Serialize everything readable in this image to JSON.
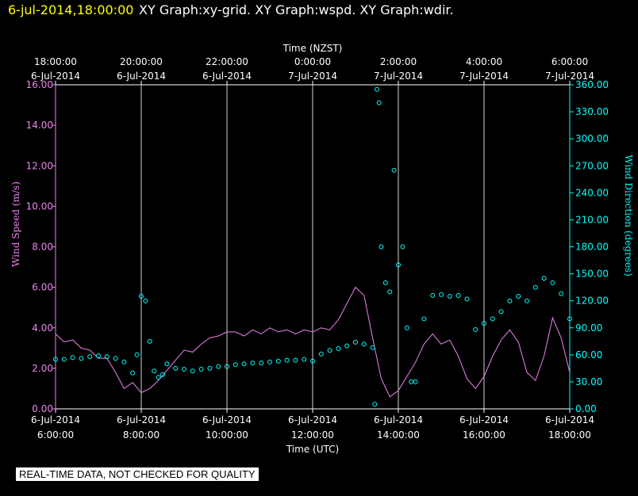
{
  "header": {
    "timestamp": "6-jul-2014,18:00:00",
    "graphs": "XY Graph:xy-grid.  XY Graph:wspd.  XY Graph:wdir."
  },
  "footer_note": "REAL-TIME DATA, NOT CHECKED FOR QUALITY",
  "colors": {
    "background": "#000000",
    "axes": "#ffffff",
    "wind_speed": "#ee82ee",
    "wind_direction": "#00ffff",
    "timestamp": "#ffff00"
  },
  "chart_data": {
    "type": "scatter",
    "grid": "vertical lines at each time tick",
    "x_top": {
      "title": "Time (NZST)",
      "ticks": [
        {
          "time": "18:00:00",
          "date": "6-Jul-2014"
        },
        {
          "time": "20:00:00",
          "date": "6-Jul-2014"
        },
        {
          "time": "22:00:00",
          "date": "6-Jul-2014"
        },
        {
          "time": "0:00:00",
          "date": "7-Jul-2014"
        },
        {
          "time": "2:00:00",
          "date": "7-Jul-2014"
        },
        {
          "time": "4:00:00",
          "date": "7-Jul-2014"
        },
        {
          "time": "6:00:00",
          "date": "7-Jul-2014"
        }
      ]
    },
    "x_bottom": {
      "title": "Time (UTC)",
      "range": [
        "6-Jul-2014 6:00:00",
        "6-Jul-2014 18:00:00"
      ],
      "ticks": [
        {
          "date": "6-Jul-2014",
          "time": "6:00:00"
        },
        {
          "date": "6-Jul-2014",
          "time": "8:00:00"
        },
        {
          "date": "6-Jul-2014",
          "time": "10:00:00"
        },
        {
          "date": "6-Jul-2014",
          "time": "12:00:00"
        },
        {
          "date": "6-Jul-2014",
          "time": "14:00:00"
        },
        {
          "date": "6-Jul-2014",
          "time": "16:00:00"
        },
        {
          "date": "6-Jul-2014",
          "time": "18:00:00"
        }
      ]
    },
    "y_left": {
      "title": "Wind Speed (m/s)",
      "range": [
        0,
        16
      ],
      "ticks": [
        "0.00",
        "2.00",
        "4.00",
        "6.00",
        "8.00",
        "10.00",
        "12.00",
        "14.00",
        "16.00"
      ]
    },
    "y_right": {
      "title": "Wind Direction (degrees)",
      "range": [
        0,
        360
      ],
      "ticks": [
        "0.00",
        "30.00",
        "60.00",
        "90.00",
        "120.00",
        "150.00",
        "180.00",
        "210.00",
        "240.00",
        "270.00",
        "300.00",
        "330.00",
        "360.00"
      ]
    },
    "series": [
      {
        "axis": "left",
        "style": "line",
        "x_units": "hours UTC",
        "points": [
          [
            6.0,
            3.7
          ],
          [
            6.2,
            3.3
          ],
          [
            6.4,
            3.4
          ],
          [
            6.6,
            3.0
          ],
          [
            6.8,
            2.9
          ],
          [
            7.0,
            2.5
          ],
          [
            7.2,
            2.5
          ],
          [
            7.4,
            1.8
          ],
          [
            7.6,
            1.0
          ],
          [
            7.8,
            1.3
          ],
          [
            8.0,
            0.8
          ],
          [
            8.2,
            1.0
          ],
          [
            8.4,
            1.4
          ],
          [
            8.6,
            1.9
          ],
          [
            8.8,
            2.4
          ],
          [
            9.0,
            2.9
          ],
          [
            9.2,
            2.8
          ],
          [
            9.4,
            3.2
          ],
          [
            9.6,
            3.5
          ],
          [
            9.8,
            3.6
          ],
          [
            10.0,
            3.8
          ],
          [
            10.2,
            3.8
          ],
          [
            10.4,
            3.6
          ],
          [
            10.6,
            3.9
          ],
          [
            10.8,
            3.7
          ],
          [
            11.0,
            4.0
          ],
          [
            11.2,
            3.8
          ],
          [
            11.4,
            3.9
          ],
          [
            11.6,
            3.7
          ],
          [
            11.8,
            3.9
          ],
          [
            12.0,
            3.8
          ],
          [
            12.2,
            4.0
          ],
          [
            12.4,
            3.9
          ],
          [
            12.6,
            4.4
          ],
          [
            12.8,
            5.2
          ],
          [
            13.0,
            6.0
          ],
          [
            13.2,
            5.6
          ],
          [
            13.4,
            3.5
          ],
          [
            13.6,
            1.5
          ],
          [
            13.8,
            0.6
          ],
          [
            14.0,
            0.9
          ],
          [
            14.2,
            1.6
          ],
          [
            14.4,
            2.3
          ],
          [
            14.6,
            3.2
          ],
          [
            14.8,
            3.7
          ],
          [
            15.0,
            3.2
          ],
          [
            15.2,
            3.4
          ],
          [
            15.4,
            2.6
          ],
          [
            15.6,
            1.5
          ],
          [
            15.8,
            1.0
          ],
          [
            16.0,
            1.6
          ],
          [
            16.2,
            2.6
          ],
          [
            16.4,
            3.4
          ],
          [
            16.6,
            3.9
          ],
          [
            16.8,
            3.3
          ],
          [
            17.0,
            1.8
          ],
          [
            17.2,
            1.4
          ],
          [
            17.4,
            2.6
          ],
          [
            17.6,
            4.5
          ],
          [
            17.8,
            3.5
          ],
          [
            18.0,
            1.8
          ]
        ]
      },
      {
        "axis": "right",
        "style": "scatter",
        "x_units": "hours UTC",
        "points": [
          [
            6.0,
            55
          ],
          [
            6.2,
            55
          ],
          [
            6.4,
            57
          ],
          [
            6.6,
            56
          ],
          [
            6.8,
            58
          ],
          [
            7.0,
            59
          ],
          [
            7.2,
            58
          ],
          [
            7.4,
            56
          ],
          [
            7.6,
            52
          ],
          [
            7.8,
            40
          ],
          [
            7.9,
            60
          ],
          [
            8.0,
            125
          ],
          [
            8.1,
            120
          ],
          [
            8.2,
            75
          ],
          [
            8.3,
            42
          ],
          [
            8.4,
            35
          ],
          [
            8.5,
            38
          ],
          [
            8.6,
            50
          ],
          [
            8.8,
            45
          ],
          [
            9.0,
            44
          ],
          [
            9.2,
            42
          ],
          [
            9.4,
            44
          ],
          [
            9.6,
            45
          ],
          [
            9.8,
            47
          ],
          [
            10.0,
            47
          ],
          [
            10.2,
            49
          ],
          [
            10.4,
            50
          ],
          [
            10.6,
            51
          ],
          [
            10.8,
            51
          ],
          [
            11.0,
            52
          ],
          [
            11.2,
            53
          ],
          [
            11.4,
            54
          ],
          [
            11.6,
            54
          ],
          [
            11.8,
            55
          ],
          [
            12.0,
            53
          ],
          [
            12.2,
            61
          ],
          [
            12.4,
            65
          ],
          [
            12.6,
            67
          ],
          [
            12.8,
            70
          ],
          [
            13.0,
            74
          ],
          [
            13.2,
            72
          ],
          [
            13.4,
            68
          ],
          [
            13.45,
            5
          ],
          [
            13.5,
            355
          ],
          [
            13.55,
            340
          ],
          [
            13.6,
            180
          ],
          [
            13.7,
            140
          ],
          [
            13.8,
            130
          ],
          [
            13.9,
            265
          ],
          [
            14.0,
            160
          ],
          [
            14.1,
            180
          ],
          [
            14.2,
            90
          ],
          [
            14.3,
            30
          ],
          [
            14.4,
            30
          ],
          [
            14.6,
            100
          ],
          [
            14.8,
            126
          ],
          [
            15.0,
            127
          ],
          [
            15.2,
            125
          ],
          [
            15.4,
            126
          ],
          [
            15.6,
            122
          ],
          [
            15.8,
            88
          ],
          [
            16.0,
            95
          ],
          [
            16.2,
            100
          ],
          [
            16.4,
            108
          ],
          [
            16.6,
            120
          ],
          [
            16.8,
            125
          ],
          [
            17.0,
            120
          ],
          [
            17.2,
            135
          ],
          [
            17.4,
            145
          ],
          [
            17.6,
            140
          ],
          [
            17.8,
            128
          ],
          [
            18.0,
            100
          ]
        ]
      }
    ]
  }
}
